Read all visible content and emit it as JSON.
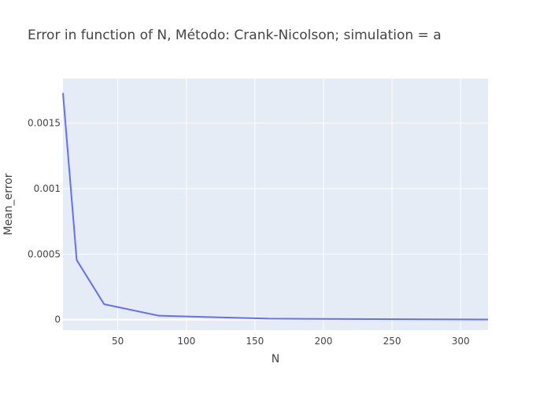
{
  "chart_data": {
    "type": "line",
    "title": "Error in function of N, Método: Crank-Nicolson; simulation = a",
    "xlabel": "N",
    "ylabel": "Mean_error",
    "xlim": [
      10,
      320
    ],
    "ylim": [
      -8e-05,
      0.00184
    ],
    "x_ticks": [
      50,
      100,
      150,
      200,
      250,
      300
    ],
    "x_tick_labels": [
      "50",
      "100",
      "150",
      "200",
      "250",
      "300"
    ],
    "y_ticks": [
      0,
      0.0005,
      0.001,
      0.0015
    ],
    "y_tick_labels": [
      "0",
      "0.0005",
      "0.001",
      "0.0015"
    ],
    "grid": true,
    "colors": {
      "plot_bg": "#e5ecf6",
      "grid": "#ffffff",
      "line": "#636efa"
    },
    "series": [
      {
        "x": [
          10,
          20,
          40,
          80,
          160,
          320
        ],
        "y": [
          0.00173,
          0.000455,
          0.000118,
          3e-05,
          7.5e-06,
          8e-07
        ]
      }
    ]
  }
}
